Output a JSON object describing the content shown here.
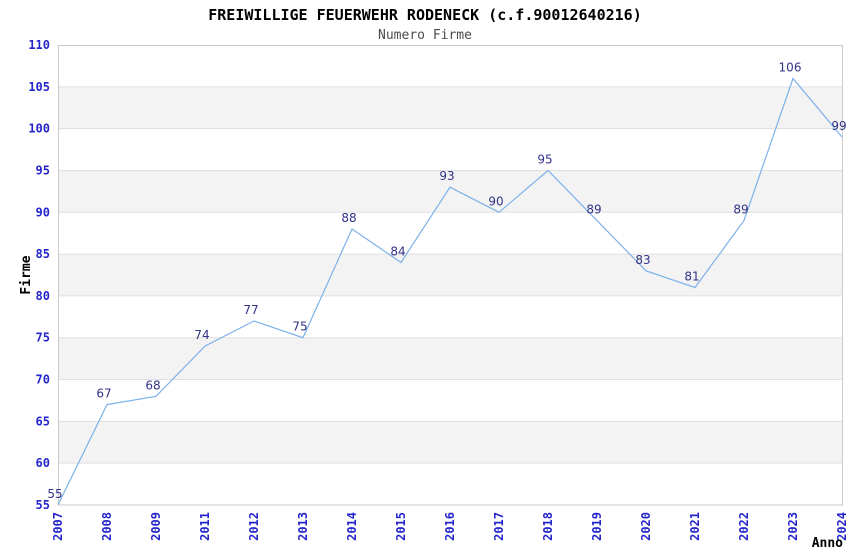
{
  "title": "FREIWILLIGE FEUERWEHR RODENECK (c.f.90012640216)",
  "subtitle": "Numero Firme",
  "chart_data": {
    "type": "line",
    "title": "FREIWILLIGE FEUERWEHR RODENECK (c.f.90012640216)",
    "subtitle": "Numero Firme",
    "xlabel": "Anno",
    "ylabel": "Firme",
    "categories": [
      "2007",
      "2008",
      "2009",
      "2011",
      "2012",
      "2013",
      "2014",
      "2015",
      "2016",
      "2017",
      "2018",
      "2019",
      "2020",
      "2021",
      "2022",
      "2023",
      "2024"
    ],
    "values": [
      55,
      67,
      68,
      74,
      77,
      75,
      88,
      84,
      93,
      90,
      95,
      89,
      83,
      81,
      89,
      106,
      99
    ],
    "data_labels_visible": true,
    "ylim": [
      55,
      110
    ],
    "ytick_step": 5,
    "yticks": [
      55,
      60,
      65,
      70,
      75,
      80,
      85,
      90,
      95,
      100,
      105,
      110
    ],
    "grid": "horizontal gridlines with alternating shaded bands",
    "legend": "none",
    "markers": "none",
    "x_tick_rotation_deg": -90
  },
  "colors": {
    "background": "#ffffff",
    "title": "#000000",
    "subtitle": "#4d4d4d",
    "axis_title": "#000000",
    "tick_label": "#2525cc",
    "data_label": "#333388",
    "line": "#7db1ea",
    "band": "#f3f3f3",
    "grid": "#e0e0e0",
    "plot_border": "#c9c9c9"
  }
}
